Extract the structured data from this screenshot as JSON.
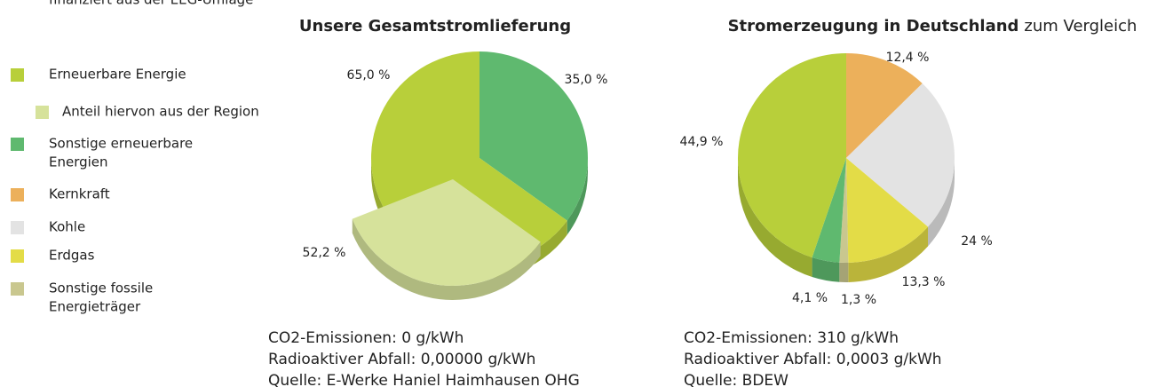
{
  "legend": {
    "items": [
      {
        "label": [
          "Erneuerbare Energie",
          "finanziert aus der EEG-Umlage"
        ],
        "color": "#b8cf3a"
      },
      {
        "label": [
          "Anteil hiervon aus der Region"
        ],
        "color": "#d6e29b",
        "sub": true
      },
      {
        "label": [
          "Sonstige erneuerbare",
          "Energien"
        ],
        "color": "#5fb96f"
      },
      {
        "label": [
          "Kernkraft"
        ],
        "color": "#ecb05b"
      },
      {
        "label": [
          "Kohle"
        ],
        "color": "#e3e3e3"
      },
      {
        "label": [
          "Erdgas"
        ],
        "color": "#e3dc47"
      },
      {
        "label": [
          "Sonstige fossile",
          "Energieträger"
        ],
        "color": "#c9c78f"
      }
    ]
  },
  "chart_data": [
    {
      "type": "pie",
      "title": "Unsere Gesamtstromlieferung",
      "values": [
        35.0,
        65.0
      ],
      "value_labels": [
        "35,0 %",
        "65,0 %"
      ],
      "colors": [
        "#5fb96f",
        "#b8cf3a"
      ],
      "detail": {
        "value": 52.2,
        "value_label": "52,2 %",
        "color": "#d6e29b"
      },
      "notes": [
        "CO2-Emissionen: 0 g/kWh",
        "Radioaktiver Abfall: 0,00000 g/kWh",
        "Quelle: E-Werke Haniel Haimhausen OHG"
      ]
    },
    {
      "type": "pie",
      "title": "Stromerzeugung in Deutschland",
      "title_note": "zum Vergleich",
      "values": [
        12.4,
        24,
        13.3,
        1.3,
        4.1,
        44.9
      ],
      "value_labels": [
        "12,4 %",
        "24 %",
        "13,3 %",
        "1,3 %",
        "4,1 %",
        "44,9 %"
      ],
      "colors": [
        "#ecb05b",
        "#e3e3e3",
        "#e3dc47",
        "#c9c78f",
        "#5fb96f",
        "#b8cf3a"
      ],
      "notes": [
        "CO2-Emissionen: 310 g/kWh",
        "Radioaktiver Abfall: 0,0003 g/kWh",
        "Quelle: BDEW"
      ]
    }
  ]
}
